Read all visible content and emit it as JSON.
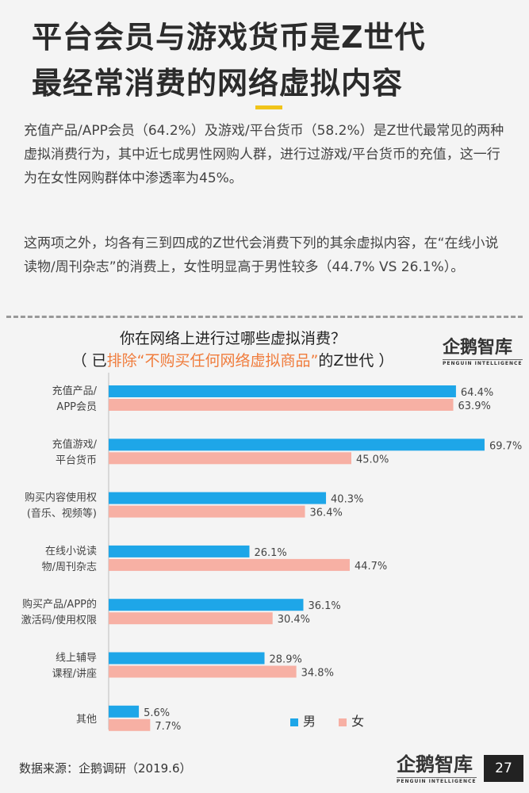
{
  "header": {
    "title_line1": "平台会员与游戏货币是Z世代",
    "title_line2": "最经常消费的网络虚拟内容"
  },
  "body": {
    "paragraph1": "充值产品/APP会员（64.2%）及游戏/平台货币（58.2%）是Z世代最常见的两种虚拟消费行为，其中近七成男性网购人群，进行过游戏/平台货币的充值，这一行为在女性网购群体中渗透率为45%。",
    "paragraph2": "这两项之外，均各有三到四成的Z世代会消费下列的其余虚拟内容，在“在线小说读物/周刊杂志”的消费上，女性明显高于男性较多（44.7% VS 26.1%）。"
  },
  "chart_title": {
    "line1": "你在网络上进行过哪些虚拟消费？",
    "line2_prefix": "（ 已",
    "line2_highlight": "排除“不购买任何网络虚拟商品”",
    "line2_suffix": "的Z世代 ）"
  },
  "logo": {
    "cn": "企鹅智库",
    "en": "PENGUIN INTELLIGENCE"
  },
  "chart_data": {
    "type": "bar",
    "orientation": "horizontal",
    "categories": [
      [
        "充值产品/",
        "APP会员"
      ],
      [
        "充值游戏/",
        "平台货币"
      ],
      [
        "购买内容使用权",
        "(音乐、视频等)"
      ],
      [
        "在线小说读",
        "物/周刊杂志"
      ],
      [
        "购买产品/APP的",
        "激活码/使用权限"
      ],
      [
        "线上辅导",
        "课程/讲座"
      ],
      [
        "其他"
      ]
    ],
    "series": [
      {
        "name": "男",
        "color": "#1ea6e8",
        "values": [
          64.4,
          69.7,
          40.3,
          26.1,
          36.1,
          28.9,
          5.6
        ],
        "labels": [
          "64.4%",
          "69.7%",
          "40.3%",
          "26.1%",
          "36.1%",
          "28.9%",
          "5.6%"
        ]
      },
      {
        "name": "女",
        "color": "#f7b0a4",
        "values": [
          63.9,
          45.0,
          36.4,
          44.7,
          30.4,
          34.8,
          7.7
        ],
        "labels": [
          "63.9%",
          "45.0%",
          "36.4%",
          "44.7%",
          "30.4%",
          "34.8%",
          "7.7%"
        ]
      }
    ],
    "xlim": [
      0,
      75
    ],
    "grid": false,
    "legend_position": "bottom-right"
  },
  "footer": {
    "source": "数据来源：企鹅调研（2019.6）",
    "page_number": "27"
  }
}
